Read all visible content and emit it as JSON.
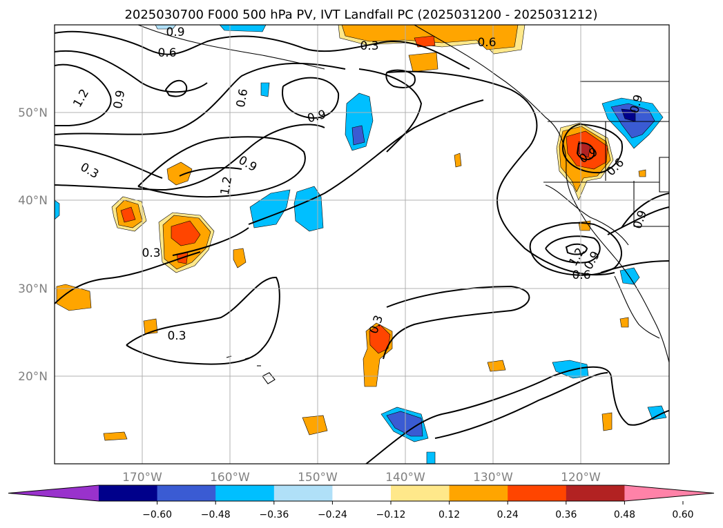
{
  "title": "2025030700 F000 500 hPa PV, IVT Landfall PC (2025031200 - 2025031212)",
  "map": {
    "lon_ticks": [
      "170°W",
      "160°W",
      "150°W",
      "140°W",
      "130°W",
      "120°W"
    ],
    "lat_ticks": [
      "50°N",
      "40°N",
      "30°N",
      "20°N"
    ],
    "gridlines": true
  },
  "contours": {
    "line_color": "#000000",
    "labels": [
      "0.9",
      "0.6",
      "0.3",
      "0.6",
      "1.2",
      "0.9",
      "0.6",
      "0.9",
      "0.3",
      "0.9",
      "1.2",
      "0.3",
      "0.3",
      "0.3",
      "0.9",
      "0.6",
      "0.9",
      "0.9",
      "0.6",
      "1.2",
      "0.9",
      "0.3"
    ]
  },
  "colorbar": {
    "labels": [
      "−0.60",
      "−0.48",
      "−0.36",
      "−0.24",
      "−0.12",
      "0.12",
      "0.24",
      "0.36",
      "0.48",
      "0.60"
    ],
    "colors": [
      "#9932cc",
      "#00008b",
      "#3a5bd3",
      "#00bfff",
      "#b0e0f8",
      "#ffffff",
      "#ffe88a",
      "#ffa500",
      "#ff4500",
      "#b22222",
      "#ff82a8"
    ]
  },
  "chart_data": {
    "type": "map-contour",
    "title": "2025030700 F000 500 hPa PV, IVT Landfall PC (2025031200 - 2025031212)",
    "lon_range": [
      -180,
      -110
    ],
    "lat_range": [
      10,
      60
    ],
    "contour_levels": [
      0.3,
      0.6,
      0.9,
      1.2
    ],
    "shading_levels": [
      -0.6,
      -0.48,
      -0.36,
      -0.24,
      -0.12,
      0.12,
      0.24,
      0.36,
      0.48,
      0.6
    ],
    "colorbar_orientation": "horizontal",
    "colorbar_extend": "both"
  }
}
